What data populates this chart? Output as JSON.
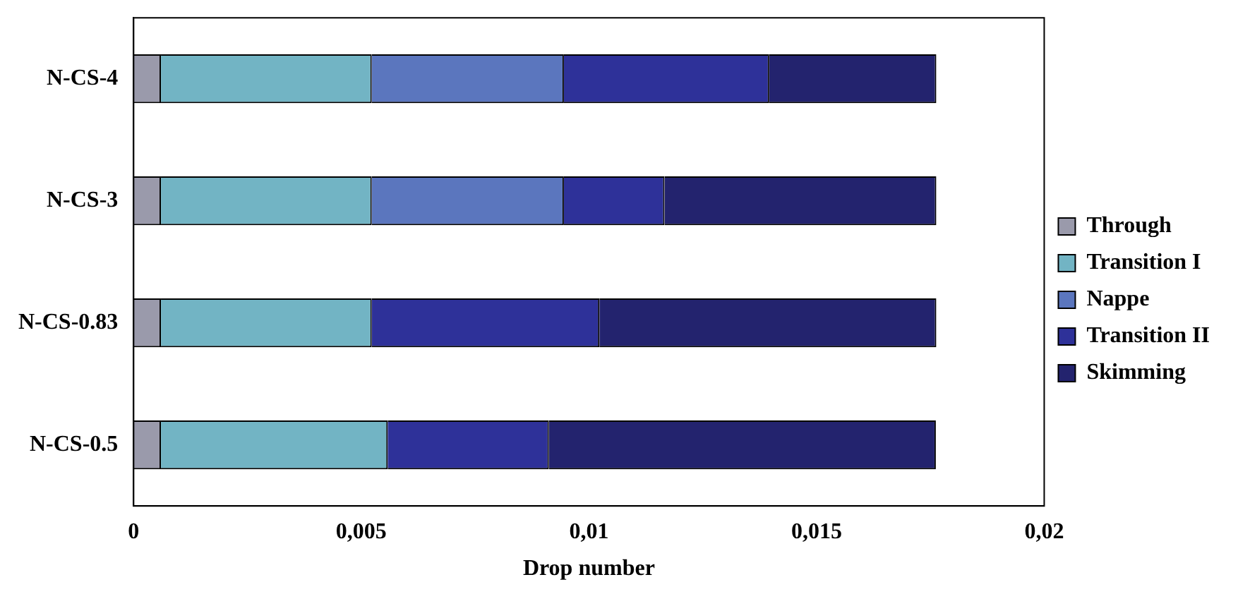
{
  "chart_data": {
    "type": "bar",
    "orientation": "horizontal",
    "stacked": true,
    "xlabel": "Drop number",
    "categories": [
      "N-CS-4",
      "N-CS-3",
      "N-CS-0.83",
      "N-CS-0.5"
    ],
    "series": [
      {
        "name": "Through",
        "color": "#9a9aab",
        "values": [
          0.0006,
          0.0006,
          0.0006,
          0.0006
        ]
      },
      {
        "name": "Transition I",
        "color": "#72b4c4",
        "values": [
          0.00463,
          0.00463,
          0.00463,
          0.00498
        ]
      },
      {
        "name": "Nappe",
        "color": "#5b76be",
        "values": [
          0.00422,
          0.00422,
          null,
          null
        ]
      },
      {
        "name": "Transition II",
        "color": "#2e3199",
        "values": [
          0.00451,
          0.00221,
          0.005,
          0.00354
        ]
      },
      {
        "name": "Skimming",
        "color": "#23236e",
        "values": [
          0.00367,
          0.00597,
          0.0074,
          0.0085
        ]
      }
    ],
    "xlim": [
      0,
      0.02
    ],
    "xticks": [
      0,
      {
        "value": 0.005,
        "label": "0,005"
      },
      {
        "value": 0.01,
        "label": "0,01"
      },
      {
        "value": 0.015,
        "label": "0,015"
      },
      {
        "value": 0.02,
        "label": "0,02"
      }
    ],
    "grid": false,
    "legend": "right"
  }
}
